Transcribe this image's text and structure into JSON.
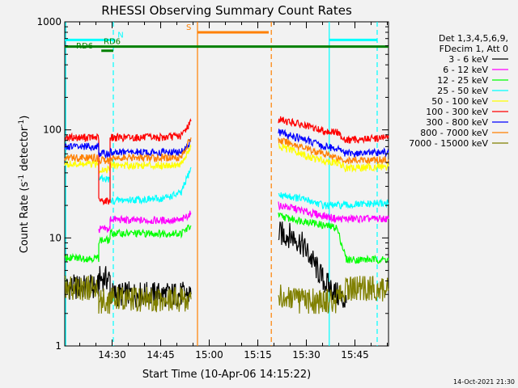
{
  "chart_data": {
    "type": "line",
    "title": "RHESSI Observing Summary Count Rates",
    "xlabel": "Start Time (10-Apr-06 14:15:22)",
    "ylabel_main": "Count Rate (s",
    "ylabel_sup1": "-1",
    "ylabel_mid": " detector",
    "ylabel_sup2": "-1",
    "ylabel_end": ")",
    "x_unit": "minutes since 14:15:22",
    "xlim": [
      0,
      100
    ],
    "ylim": [
      1,
      1000
    ],
    "y_scale": "log",
    "x_ticks": [
      {
        "value": 14.63,
        "label": "14:30"
      },
      {
        "value": 29.63,
        "label": "14:45"
      },
      {
        "value": 44.63,
        "label": "15:00"
      },
      {
        "value": 59.63,
        "label": "15:15"
      },
      {
        "value": 74.63,
        "label": "15:30"
      },
      {
        "value": 89.63,
        "label": "15:45"
      }
    ],
    "y_ticks": [
      {
        "value": 1,
        "label": "1"
      },
      {
        "value": 10,
        "label": "10"
      },
      {
        "value": 100,
        "label": "100"
      },
      {
        "value": 1000,
        "label": "1000"
      }
    ],
    "legend": {
      "placement": "right",
      "header": [
        "Det 1,3,4,5,6,9,",
        "FDecim 1, Att 0"
      ]
    },
    "series": [
      {
        "name": "3 - 6 keV",
        "color": "#000000",
        "segments": [
          [
            [
              0,
              3.5
            ],
            [
              10.5,
              3.5
            ],
            [
              10.5,
              4.2
            ],
            [
              14,
              4.2
            ],
            [
              14,
              3
            ],
            [
              39,
              3
            ]
          ],
          [
            [
              66,
              11
            ],
            [
              70,
              10.5
            ],
            [
              73,
              9
            ],
            [
              76,
              6.5
            ],
            [
              80,
              4
            ],
            [
              84,
              3
            ],
            [
              87,
              2.5
            ]
          ]
        ]
      },
      {
        "name": "6 - 12 keV",
        "color": "#ff00ff",
        "segments": [
          [
            [
              10.5,
              12
            ],
            [
              14,
              12
            ],
            [
              14,
              15
            ],
            [
              20,
              14.5
            ],
            [
              30,
              14.5
            ],
            [
              36,
              14.5
            ],
            [
              39,
              17
            ]
          ],
          [
            [
              66,
              20
            ],
            [
              70,
              19
            ],
            [
              76,
              17
            ],
            [
              80,
              16
            ],
            [
              84,
              15
            ],
            [
              100,
              15
            ]
          ]
        ]
      },
      {
        "name": "12 - 25 keV",
        "color": "#00ff00",
        "segments": [
          [
            [
              0,
              6.5
            ],
            [
              10.5,
              6.5
            ],
            [
              10.5,
              9.5
            ],
            [
              14,
              9.5
            ],
            [
              14,
              11
            ],
            [
              20,
              11
            ],
            [
              30,
              11
            ],
            [
              36,
              11
            ],
            [
              39,
              13
            ]
          ],
          [
            [
              66,
              16
            ],
            [
              70,
              15
            ],
            [
              76,
              14
            ],
            [
              80,
              13
            ],
            [
              84,
              12.5
            ],
            [
              87,
              6.3
            ],
            [
              100,
              6.3
            ]
          ]
        ]
      },
      {
        "name": "25 - 50 keV",
        "color": "#00ffff",
        "segments": [
          [
            [
              10.5,
              35
            ],
            [
              14,
              35
            ],
            [
              14,
              22
            ],
            [
              20,
              22.5
            ],
            [
              30,
              23
            ],
            [
              36,
              26
            ],
            [
              39,
              45
            ]
          ],
          [
            [
              66,
              25
            ],
            [
              70,
              24
            ],
            [
              76,
              22
            ],
            [
              80,
              20
            ],
            [
              84,
              20
            ],
            [
              87,
              20
            ],
            [
              100,
              21
            ]
          ]
        ]
      },
      {
        "name": "50 - 100 keV",
        "color": "#ffff00",
        "segments": [
          [
            [
              0,
              48
            ],
            [
              10.5,
              48
            ],
            [
              10.5,
              43
            ],
            [
              14,
              43
            ],
            [
              14,
              47
            ],
            [
              20,
              47
            ],
            [
              30,
              47
            ],
            [
              36,
              48
            ],
            [
              39,
              70
            ]
          ],
          [
            [
              66,
              70
            ],
            [
              70,
              65
            ],
            [
              76,
              55
            ],
            [
              80,
              52
            ],
            [
              84,
              50
            ],
            [
              87,
              44
            ],
            [
              100,
              46
            ]
          ]
        ]
      },
      {
        "name": "100 - 300 keV",
        "color": "#ff0000",
        "segments": [
          [
            [
              0,
              85
            ],
            [
              10.5,
              85
            ],
            [
              10.5,
              22
            ],
            [
              14,
              22
            ],
            [
              14,
              85
            ],
            [
              20,
              85
            ],
            [
              30,
              85
            ],
            [
              36,
              88
            ],
            [
              39,
              120
            ]
          ],
          [
            [
              66,
              125
            ],
            [
              70,
              118
            ],
            [
              76,
              105
            ],
            [
              80,
              98
            ],
            [
              84,
              95
            ],
            [
              87,
              80
            ],
            [
              100,
              85
            ]
          ]
        ]
      },
      {
        "name": "300 - 800 keV",
        "color": "#0000ff",
        "segments": [
          [
            [
              0,
              70
            ],
            [
              10.5,
              70
            ],
            [
              10.5,
              60
            ],
            [
              14,
              60
            ],
            [
              14,
              62
            ],
            [
              20,
              62
            ],
            [
              30,
              62
            ],
            [
              36,
              62
            ],
            [
              39,
              78
            ]
          ],
          [
            [
              66,
              95
            ],
            [
              70,
              88
            ],
            [
              76,
              78
            ],
            [
              80,
              70
            ],
            [
              84,
              68
            ],
            [
              87,
              60
            ],
            [
              100,
              62
            ]
          ]
        ]
      },
      {
        "name": "800 - 7000 keV",
        "color": "#ff8000",
        "segments": [
          [
            [
              0,
              55
            ],
            [
              10.5,
              55
            ],
            [
              10.5,
              52
            ],
            [
              14,
              52
            ],
            [
              14,
              55
            ],
            [
              20,
              55
            ],
            [
              30,
              55
            ],
            [
              36,
              56
            ],
            [
              39,
              85
            ]
          ],
          [
            [
              66,
              80
            ],
            [
              70,
              75
            ],
            [
              76,
              65
            ],
            [
              80,
              60
            ],
            [
              84,
              56
            ],
            [
              87,
              52
            ],
            [
              100,
              53
            ]
          ]
        ]
      },
      {
        "name": "7000 - 15000 keV",
        "color": "#808000",
        "segments": [
          [
            [
              0,
              3.4
            ],
            [
              10.5,
              3.4
            ],
            [
              10.5,
              2.6
            ],
            [
              14,
              2.6
            ],
            [
              14,
              2.7
            ],
            [
              39,
              2.7
            ]
          ],
          [
            [
              66,
              3
            ],
            [
              70,
              2.6
            ],
            [
              76,
              2.6
            ],
            [
              84,
              2.6
            ],
            [
              87,
              3.4
            ],
            [
              100,
              3.4
            ]
          ]
        ]
      }
    ],
    "annotation_bars": [
      {
        "label": "N",
        "color": "#00ffff",
        "x0": 0,
        "x1": 15.6,
        "y": 680,
        "label_x": 16.3
      },
      {
        "label": "N",
        "color": "#00ffff",
        "x0": 81.7,
        "x1": 96.5,
        "y": 680,
        "label_x": null
      },
      {
        "label": "RD6",
        "color": "#008000",
        "x0": 11.3,
        "x1": 15,
        "y": 540,
        "label_x": 3.5
      },
      {
        "label": "RD6",
        "color": "#008000",
        "x0": 0,
        "x1": 100,
        "y": 590,
        "label_x": 12
      },
      {
        "label": "S",
        "color": "#ff8000",
        "x0": 41,
        "x1": 63,
        "y": 800,
        "label_x": 37.5
      }
    ],
    "vertical_lines": [
      {
        "x": 0.3,
        "color": "#00ffff",
        "style": "solid"
      },
      {
        "x": 15,
        "color": "#00ffff",
        "style": "dashed"
      },
      {
        "x": 41,
        "color": "#ff8000",
        "style": "solid"
      },
      {
        "x": 63.8,
        "color": "#ff8000",
        "style": "dashed"
      },
      {
        "x": 81.7,
        "color": "#00ffff",
        "style": "solid"
      },
      {
        "x": 96.5,
        "color": "#00ffff",
        "style": "dashed"
      }
    ]
  },
  "footer": {
    "timestamp": "14-Oct-2021 21:30"
  }
}
